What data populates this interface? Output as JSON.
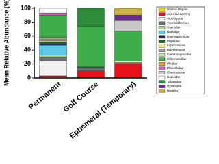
{
  "chart_data": {
    "type": "stacked-bar",
    "y_label": "Mean Relative Abundance (%)",
    "categories": [
      "Permanent",
      "Golf Course",
      "Ephemeral (Temporary)"
    ],
    "ylim": [
      0,
      100
    ],
    "yticks": [
      0,
      20,
      40,
      60,
      80,
      100
    ],
    "series": [
      {
        "name": "Diptera Pupae",
        "color": "#f2e600",
        "values": [
          2,
          0,
          0
        ]
      },
      {
        "name": "Annelida (worm)",
        "color": "#e8141c",
        "values": [
          1,
          10,
          20
        ]
      },
      {
        "name": "Amphipoda",
        "color": "#f0f0f0",
        "values": [
          21,
          0,
          0
        ]
      },
      {
        "name": "Trombidiformes",
        "color": "#6e6e6e",
        "values": [
          6,
          4,
          2
        ]
      },
      {
        "name": "Caenidae",
        "color": "#9fd98a",
        "values": [
          3,
          0,
          0
        ]
      },
      {
        "name": "Baetidae",
        "color": "#5fc8e6",
        "values": [
          14,
          0,
          0
        ]
      },
      {
        "name": "Coenagrionidae",
        "color": "#1a2a5a",
        "values": [
          2,
          0,
          0
        ]
      },
      {
        "name": "Physidae",
        "color": "#1f6b2e",
        "values": [
          2,
          2,
          0
        ]
      },
      {
        "name": "Leptoceridae",
        "color": "#f5ee90",
        "values": [
          2,
          0,
          2
        ]
      },
      {
        "name": "Macromiidae",
        "color": "#9a9a9a",
        "values": [
          3,
          0,
          0
        ]
      },
      {
        "name": "Ceratopogonidae",
        "color": "#b8e6a0",
        "values": [
          2,
          0,
          0
        ]
      },
      {
        "name": "Chironomidae",
        "color": "#3fae4a",
        "values": [
          32,
          58,
          43
        ]
      },
      {
        "name": "Pleidae",
        "color": "#f0a030",
        "values": [
          0,
          0,
          0
        ]
      },
      {
        "name": "Planorbidae",
        "color": "#d060c0",
        "values": [
          3,
          0,
          0
        ]
      },
      {
        "name": "Chaoboridae",
        "color": "#c8c8c8",
        "values": [
          0,
          0,
          15
        ]
      },
      {
        "name": "Corixidae",
        "color": "#fafafa",
        "values": [
          7,
          0,
          0
        ]
      },
      {
        "name": "Tabanidae",
        "color": "#2e8b3a",
        "values": [
          0,
          26,
          0
        ]
      },
      {
        "name": "Dytiscidae",
        "color": "#6a2a8a",
        "values": [
          0,
          0,
          8
        ]
      },
      {
        "name": "Bivalvia",
        "color": "#c8b040",
        "values": [
          0,
          0,
          10
        ]
      }
    ]
  }
}
